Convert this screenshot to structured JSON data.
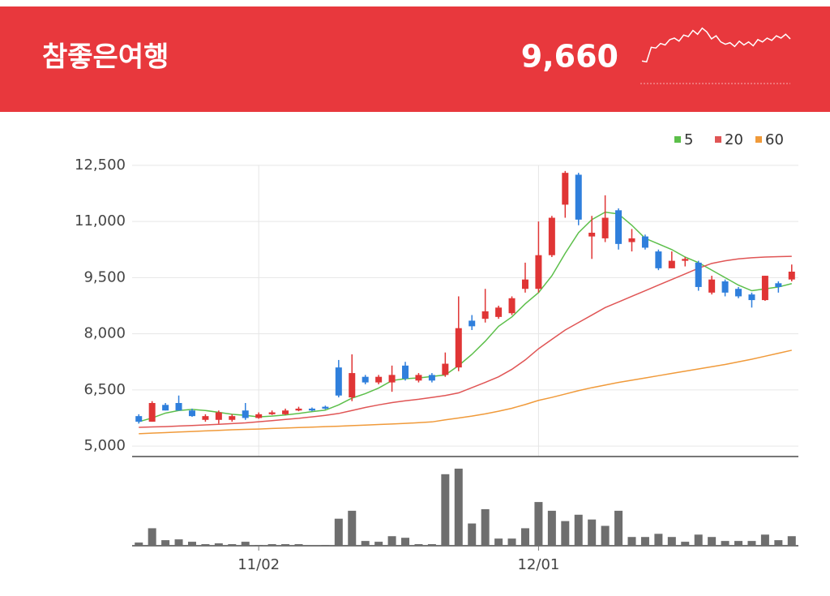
{
  "header": {
    "title": "참좋은여행",
    "price": "9,660",
    "sparkline": {
      "values": [
        8000,
        7900,
        9800,
        9700,
        10300,
        10100,
        10800,
        11000,
        10600,
        11400,
        11200,
        12000,
        11500,
        12300,
        11800,
        10900,
        11300,
        10500,
        10200,
        10400,
        9900,
        10600,
        10100,
        10500,
        10000,
        10800,
        10500,
        11000,
        10700,
        11300,
        11000,
        11500,
        10900
      ],
      "ylim": [
        7500,
        12800
      ],
      "color": "#ffffff"
    }
  },
  "chart_data": {
    "type": "candlestick",
    "categories": [
      null,
      null,
      null,
      null,
      null,
      null,
      null,
      null,
      null,
      "11/02",
      null,
      null,
      null,
      null,
      null,
      null,
      null,
      null,
      null,
      null,
      null,
      null,
      null,
      null,
      null,
      null,
      null,
      null,
      null,
      null,
      "12/01",
      null,
      null,
      null,
      null,
      null,
      null,
      null,
      null,
      null,
      null,
      null,
      null,
      null,
      null,
      null,
      null,
      null,
      null,
      null
    ],
    "open": [
      5800,
      5650,
      6100,
      6150,
      5950,
      5700,
      5700,
      5700,
      5950,
      5750,
      5850,
      5850,
      5950,
      6000,
      6050,
      7100,
      6300,
      6850,
      6700,
      6700,
      7150,
      6750,
      6900,
      6900,
      7100,
      8350,
      8400,
      8450,
      8550,
      9200,
      9200,
      10100,
      11450,
      12250,
      10600,
      10550,
      11300,
      10450,
      10600,
      10200,
      9750,
      9950,
      9900,
      9100,
      9400,
      9200,
      9050,
      8900,
      9350,
      9450
    ],
    "high": [
      5850,
      6200,
      6150,
      6350,
      6000,
      5850,
      5950,
      5850,
      6150,
      5900,
      5950,
      6000,
      6050,
      6030,
      6080,
      7300,
      7450,
      6900,
      6900,
      7150,
      7250,
      6950,
      6950,
      7500,
      9000,
      8500,
      9200,
      8750,
      9000,
      9900,
      11000,
      11150,
      12350,
      12300,
      11150,
      11700,
      11350,
      10800,
      10650,
      10250,
      10200,
      10050,
      9950,
      9550,
      9450,
      9250,
      9100,
      9550,
      9400,
      9850
    ],
    "low": [
      5600,
      5650,
      5950,
      5950,
      5780,
      5650,
      5600,
      5650,
      5700,
      5730,
      5830,
      5830,
      5930,
      5930,
      5980,
      6300,
      6200,
      6650,
      6650,
      6450,
      6750,
      6700,
      6700,
      6850,
      7000,
      8100,
      8300,
      8400,
      8500,
      9100,
      9100,
      10050,
      11100,
      10900,
      10000,
      10450,
      10250,
      10200,
      10250,
      9700,
      9750,
      9800,
      9150,
      9050,
      9000,
      8950,
      8700,
      8880,
      9100,
      9400
    ],
    "close": [
      5650,
      6150,
      5950,
      5950,
      5800,
      5800,
      5900,
      5800,
      5750,
      5850,
      5900,
      5950,
      6000,
      5950,
      6000,
      6350,
      6950,
      6700,
      6850,
      6900,
      6800,
      6900,
      6750,
      7200,
      8150,
      8200,
      8600,
      8700,
      8950,
      9450,
      10100,
      11100,
      12300,
      11050,
      10700,
      11100,
      10400,
      10550,
      10300,
      9750,
      9950,
      10000,
      9250,
      9450,
      9100,
      9000,
      8900,
      9550,
      9250,
      9660
    ],
    "up_color": "#e03535",
    "down_color": "#2f7fdc",
    "series": [
      {
        "name": "5",
        "color": "#5cbf4a",
        "values": [
          5650,
          5750,
          5880,
          5950,
          5980,
          5950,
          5900,
          5850,
          5820,
          5780,
          5800,
          5830,
          5870,
          5920,
          5960,
          6100,
          6280,
          6400,
          6550,
          6750,
          6800,
          6820,
          6860,
          6900,
          7150,
          7450,
          7800,
          8200,
          8450,
          8800,
          9100,
          9550,
          10150,
          10700,
          11050,
          11250,
          11200,
          10900,
          10550,
          10400,
          10250,
          10050,
          9900,
          9700,
          9500,
          9300,
          9150,
          9200,
          9250,
          9340
        ]
      },
      {
        "name": "20",
        "color": "#e05555",
        "values": [
          5500,
          5510,
          5520,
          5535,
          5550,
          5565,
          5580,
          5600,
          5620,
          5650,
          5680,
          5710,
          5740,
          5780,
          5820,
          5870,
          5950,
          6030,
          6100,
          6160,
          6210,
          6250,
          6300,
          6350,
          6420,
          6560,
          6700,
          6850,
          7050,
          7300,
          7600,
          7850,
          8100,
          8300,
          8500,
          8700,
          8850,
          9000,
          9150,
          9300,
          9450,
          9600,
          9750,
          9880,
          9950,
          10000,
          10030,
          10050,
          10060,
          10070
        ]
      },
      {
        "name": "60",
        "color": "#f09a3a",
        "values": [
          5330,
          5345,
          5360,
          5375,
          5390,
          5405,
          5420,
          5435,
          5445,
          5455,
          5470,
          5480,
          5495,
          5505,
          5520,
          5530,
          5545,
          5560,
          5575,
          5590,
          5605,
          5625,
          5645,
          5700,
          5750,
          5800,
          5860,
          5930,
          6010,
          6110,
          6220,
          6300,
          6390,
          6480,
          6560,
          6630,
          6700,
          6760,
          6820,
          6880,
          6940,
          7000,
          7060,
          7120,
          7180,
          7250,
          7320,
          7400,
          7480,
          7560
        ]
      }
    ],
    "ylim": [
      4720,
      12780
    ],
    "yticks": [
      {
        "value": 5000,
        "label": "5,000"
      },
      {
        "value": 6500,
        "label": "6,500"
      },
      {
        "value": 8000,
        "label": "8,000"
      },
      {
        "value": 9500,
        "label": "9,500"
      },
      {
        "value": 11000,
        "label": "11,000"
      },
      {
        "value": 12500,
        "label": "12,500"
      }
    ],
    "grid": true,
    "volume": {
      "color": "#6e6e6e",
      "ylim": [
        0,
        100
      ],
      "values": [
        4,
        22,
        7,
        8,
        5,
        2,
        3,
        2,
        5,
        1,
        2,
        2,
        2,
        0,
        1,
        34,
        44,
        6,
        5,
        12,
        10,
        2,
        2,
        90,
        97,
        28,
        46,
        9,
        9,
        22,
        55,
        44,
        31,
        39,
        33,
        25,
        44,
        11,
        11,
        15,
        11,
        5,
        14,
        11,
        6,
        6,
        6,
        14,
        7,
        12
      ]
    }
  }
}
